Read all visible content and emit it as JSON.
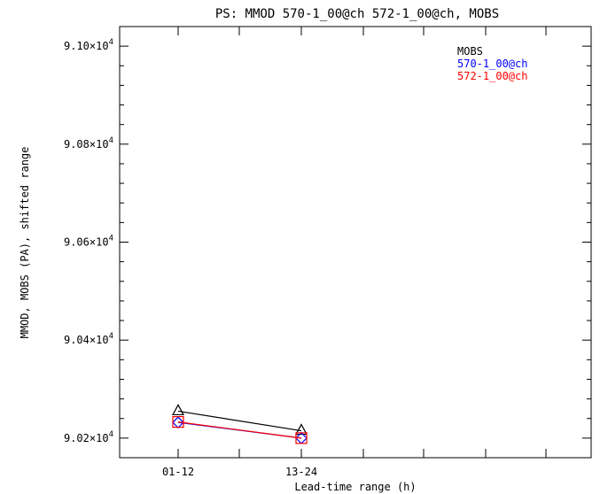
{
  "chart_data": {
    "type": "line",
    "title": "PS: MMOD 570-1_00@ch 572-1_00@ch, MOBS",
    "xlabel": "Lead-time range (h)",
    "ylabel": "MMOD, MOBS (PA), shifted range",
    "categories": [
      "01-12",
      "13-24"
    ],
    "ylim": [
      90160,
      90320
    ],
    "y_ticks": [
      {
        "value": 90200,
        "mantissa": "9.02",
        "exp": "4"
      },
      {
        "value": 90400,
        "mantissa": "9.04",
        "exp": "4"
      },
      {
        "value": 90600,
        "mantissa": "9.06",
        "exp": "4"
      },
      {
        "value": 90800,
        "mantissa": "9.08",
        "exp": "4"
      },
      {
        "value": 91000,
        "mantissa": "9.10",
        "exp": "4"
      }
    ],
    "legend_position": "top-right",
    "series": [
      {
        "name": "MOBS",
        "color": "#000000",
        "marker": "triangle",
        "values": [
          90255,
          90215
        ]
      },
      {
        "name": "570-1_00@ch",
        "color": "#0000ff",
        "marker": "diamond",
        "values": [
          90232,
          90200
        ]
      },
      {
        "name": "572-1_00@ch",
        "color": "#ff0000",
        "marker": "square",
        "values": [
          90233,
          90200
        ]
      }
    ]
  }
}
